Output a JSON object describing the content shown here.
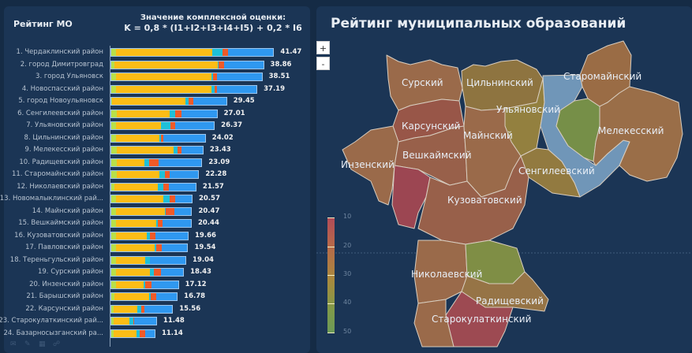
{
  "left_panel": {
    "title": "Рейтинг МО",
    "formula_line1": "Значение комплексной оценки:",
    "formula_line2": "K = 0,8 * (I1+I2+I3+I4+I5) + 0,2 * I6",
    "segment_colors": [
      "#b8e04a",
      "#fbbd16",
      "#1ec0d8",
      "#f05a28",
      "#2f98f0"
    ],
    "rows": [
      {
        "label": "1. Чердаклинский район",
        "value": "41.47",
        "segments": [
          1.3,
          24.5,
          2.7,
          1.4,
          11.6
        ]
      },
      {
        "label": "2. город Димитровград",
        "value": "38.86",
        "segments": [
          0.8,
          26.4,
          0.3,
          1.4,
          10.0
        ]
      },
      {
        "label": "3. город Ульяновск",
        "value": "38.51",
        "segments": [
          1.2,
          24.4,
          0.5,
          1.0,
          11.4
        ]
      },
      {
        "label": "4. Новоспасский район",
        "value": "37.19",
        "segments": [
          1.3,
          24.3,
          0.8,
          0.6,
          10.2
        ]
      },
      {
        "label": "5. город Новоульяновск",
        "value": "29.45",
        "segments": [
          0.3,
          18.6,
          0.8,
          1.4,
          8.35
        ]
      },
      {
        "label": "6. Сенгилеевский район",
        "value": "27.01",
        "segments": [
          1.4,
          13.6,
          1.4,
          1.6,
          9.0
        ]
      },
      {
        "label": "7. Ульяновский район",
        "value": "26.37",
        "segments": [
          1.2,
          11.5,
          2.4,
          1.3,
          9.9
        ]
      },
      {
        "label": "8. Цильнинский район",
        "value": "24.02",
        "segments": [
          1.3,
          11.0,
          0.4,
          0.7,
          10.6
        ]
      },
      {
        "label": "9. Мелекесский район",
        "value": "23.43",
        "segments": [
          1.4,
          14.5,
          1.0,
          1.0,
          5.5
        ]
      },
      {
        "label": "10. Радищевский район",
        "value": "23.09",
        "segments": [
          1.5,
          7.0,
          1.1,
          2.5,
          11.0
        ]
      },
      {
        "label": "11. Старомайнский район",
        "value": "22.28",
        "segments": [
          1.4,
          11.0,
          1.3,
          1.2,
          7.4
        ]
      },
      {
        "label": "12. Николаевский район",
        "value": "21.57",
        "segments": [
          0.9,
          11.0,
          1.5,
          1.3,
          6.9
        ]
      },
      {
        "label": "13. Новомалыклинский рай...",
        "value": "20.57",
        "segments": [
          1.2,
          12.2,
          1.6,
          1.3,
          4.3
        ]
      },
      {
        "label": "14. Майнский район",
        "value": "20.47",
        "segments": [
          1.3,
          12.4,
          0.3,
          2.1,
          4.4
        ]
      },
      {
        "label": "15. Вешкаймский район",
        "value": "20.44",
        "segments": [
          1.3,
          10.2,
          0.5,
          1.2,
          7.2
        ]
      },
      {
        "label": "16. Кузоватовский район",
        "value": "19.66",
        "segments": [
          1.3,
          7.7,
          1.0,
          1.4,
          8.2
        ]
      },
      {
        "label": "17. Павловский район",
        "value": "19.54",
        "segments": [
          1.3,
          9.8,
          0.5,
          1.4,
          6.5
        ]
      },
      {
        "label": "18. Тереньгульский район",
        "value": "19.04",
        "segments": [
          1.2,
          7.5,
          1.2,
          0.1,
          9.0
        ]
      },
      {
        "label": "19. Сурский район",
        "value": "18.43",
        "segments": [
          1.2,
          8.8,
          1.0,
          1.7,
          5.7
        ]
      },
      {
        "label": "20. Инзенский район",
        "value": "17.12",
        "segments": [
          1.2,
          7.0,
          0.5,
          1.6,
          6.8
        ]
      },
      {
        "label": "21. Барышский район",
        "value": "16.78",
        "segments": [
          0.8,
          8.9,
          0.5,
          1.4,
          5.2
        ]
      },
      {
        "label": "22. Карсунский район",
        "value": "15.56",
        "segments": [
          0.6,
          6.0,
          1.0,
          0.8,
          7.2
        ]
      },
      {
        "label": "23. Старокулаткинский рай...",
        "value": "11.48",
        "segments": [
          0.6,
          4.0,
          1.0,
          0.3,
          5.6
        ]
      },
      {
        "label": "24. Базарносызганский ра...",
        "value": "11.14",
        "segments": [
          0.6,
          5.9,
          0.7,
          1.5,
          2.4
        ]
      }
    ],
    "footer_icons": [
      "comment-icon",
      "pencil-icon",
      "table-icon",
      "chat-icon"
    ]
  },
  "right_panel": {
    "title": "Рейтинг муниципальных образований",
    "zoom_in": "+",
    "zoom_out": "-",
    "legend": {
      "ticks": [
        "10",
        "20",
        "30",
        "40",
        "50"
      ]
    },
    "map_labels": [
      "Сурский",
      "Цильнинский",
      "Старомайнский",
      "Ульяновский",
      "Карсунский",
      "Майнский",
      "Мелекесский",
      "Инзенский",
      "Вешкаймский",
      "Сенгилеевский",
      "Кузоватовский",
      "Николаевский",
      "Радищевский",
      "Старокулаткинский"
    ],
    "colors": {
      "brown": "#9a6a4a",
      "reddish": "#985648",
      "red": "#9c4652",
      "olive": "#8e7a42",
      "green": "#768f48",
      "blue": "#7096b8"
    }
  }
}
